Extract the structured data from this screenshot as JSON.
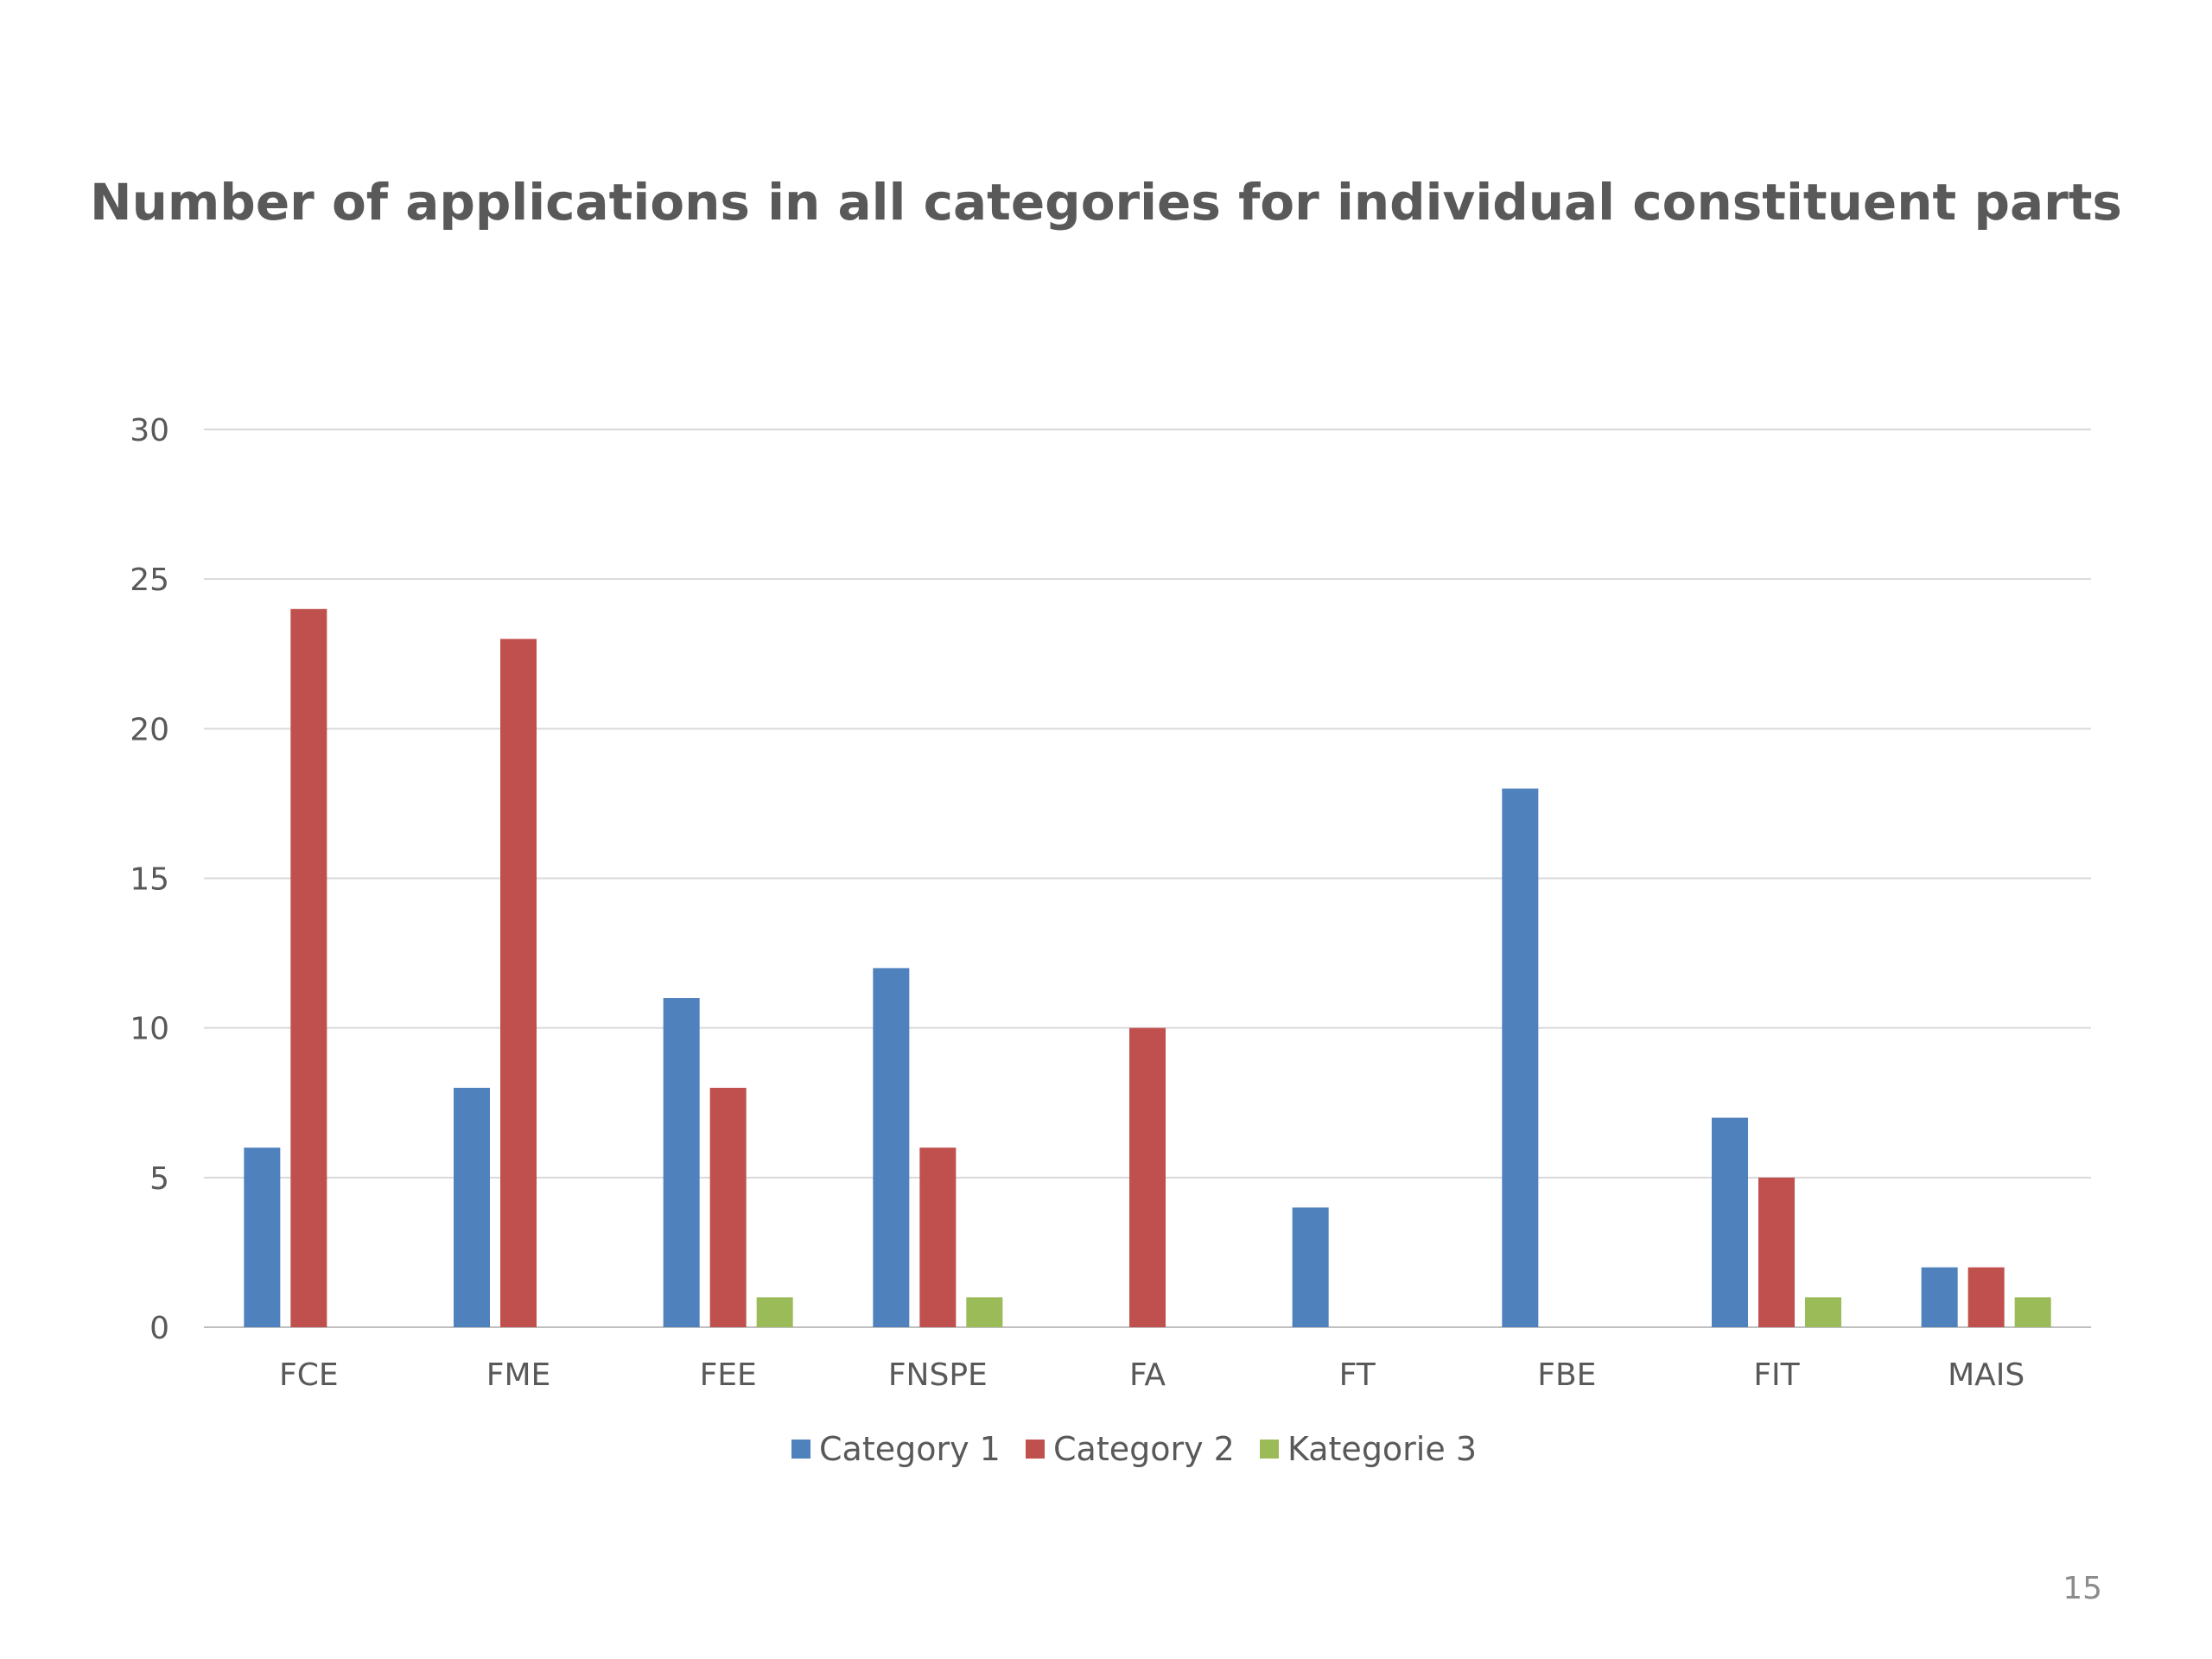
{
  "chart_data": {
    "type": "bar",
    "title": "Number of applications in all categories for individual constituent parts",
    "categories": [
      "FCE",
      "FME",
      "FEE",
      "FNSPE",
      "FA",
      "FT",
      "FBE",
      "FIT",
      "MAIS"
    ],
    "series": [
      {
        "name": "Category 1",
        "color": "#4f81bd",
        "values": [
          6,
          8,
          11,
          12,
          0,
          4,
          18,
          7,
          2
        ]
      },
      {
        "name": "Category 2",
        "color": "#c0504d",
        "values": [
          24,
          23,
          8,
          6,
          10,
          0,
          0,
          5,
          2
        ]
      },
      {
        "name": "Kategorie 3",
        "color": "#9bbb59",
        "values": [
          0,
          0,
          1,
          1,
          0,
          0,
          0,
          1,
          1
        ]
      }
    ],
    "yticks": [
      "0",
      "5",
      "10",
      "15",
      "20",
      "25",
      "30"
    ],
    "ylim": [
      0,
      30
    ],
    "grid": true,
    "legend_position": "bottom"
  },
  "page_number": "15"
}
